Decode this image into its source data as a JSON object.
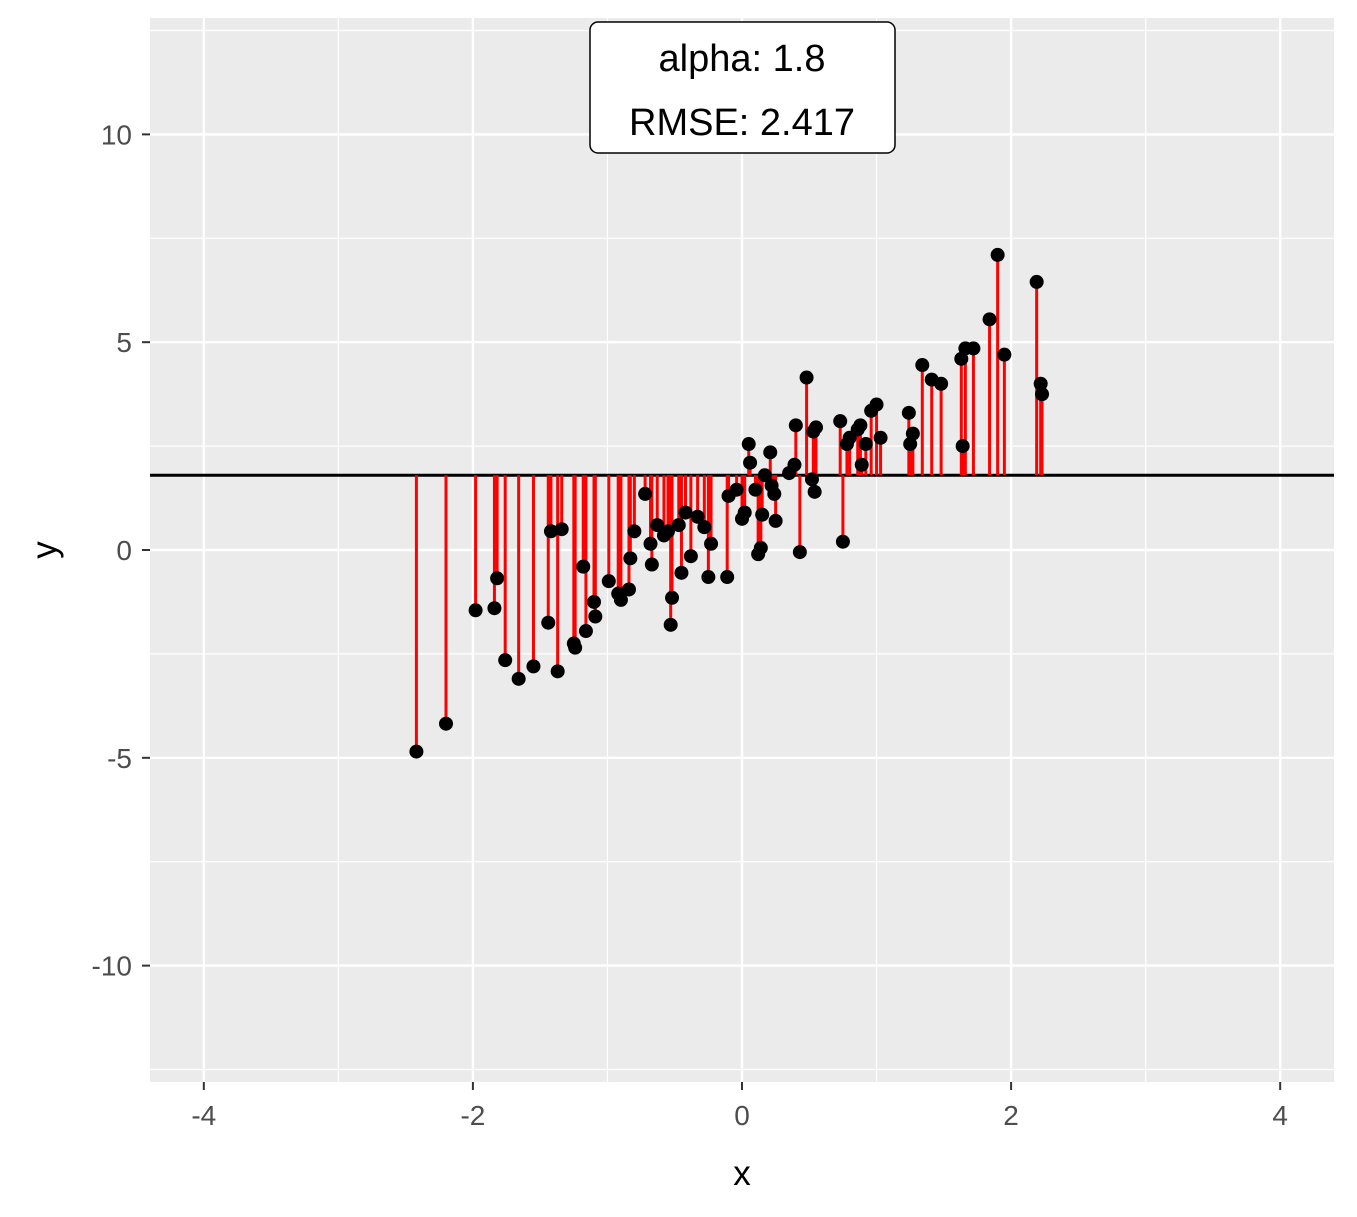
{
  "chart_data": {
    "type": "scatter",
    "title": "",
    "xlabel": "x",
    "ylabel": "y",
    "xlim": [
      -4.4,
      4.4
    ],
    "ylim": [
      -12.8,
      12.8
    ],
    "x_ticks": [
      -4,
      -2,
      0,
      2,
      4
    ],
    "x_tick_labels": [
      "-4",
      "-2",
      "0",
      "2",
      "4"
    ],
    "y_ticks": [
      -10,
      -5,
      0,
      5,
      10
    ],
    "y_tick_labels": [
      "-10",
      "-5",
      "0",
      "5",
      "10"
    ],
    "grid": true,
    "legend": "none",
    "colors": {
      "points": "#000000",
      "residuals": "#ff0000",
      "reference_line": "#000000",
      "panel": "#ebebeb",
      "grid": "#ffffff"
    },
    "reference_line": {
      "y": 1.8
    },
    "annotation": {
      "lines": [
        "alpha: 1.8",
        "RMSE: 2.417"
      ],
      "position": "top-center"
    },
    "points": [
      {
        "x": -2.42,
        "y": -4.85
      },
      {
        "x": -2.2,
        "y": -4.18
      },
      {
        "x": -1.98,
        "y": -1.45
      },
      {
        "x": -1.84,
        "y": -1.4
      },
      {
        "x": -1.82,
        "y": -0.68
      },
      {
        "x": -1.76,
        "y": -2.65
      },
      {
        "x": -1.66,
        "y": -3.1
      },
      {
        "x": -1.55,
        "y": -2.8
      },
      {
        "x": -1.44,
        "y": -1.75
      },
      {
        "x": -1.42,
        "y": 0.45
      },
      {
        "x": -1.37,
        "y": -2.92
      },
      {
        "x": -1.34,
        "y": 0.5
      },
      {
        "x": -1.25,
        "y": -2.25
      },
      {
        "x": -1.24,
        "y": -2.35
      },
      {
        "x": -1.18,
        "y": -0.4
      },
      {
        "x": -1.16,
        "y": -1.95
      },
      {
        "x": -1.1,
        "y": -1.25
      },
      {
        "x": -1.09,
        "y": -1.6
      },
      {
        "x": -0.99,
        "y": -0.75
      },
      {
        "x": -0.92,
        "y": -1.05
      },
      {
        "x": -0.9,
        "y": -1.2
      },
      {
        "x": -0.84,
        "y": -0.95
      },
      {
        "x": -0.83,
        "y": -0.2
      },
      {
        "x": -0.8,
        "y": 0.45
      },
      {
        "x": -0.72,
        "y": 1.35
      },
      {
        "x": -0.68,
        "y": 0.15
      },
      {
        "x": -0.67,
        "y": -0.35
      },
      {
        "x": -0.63,
        "y": 0.6
      },
      {
        "x": -0.58,
        "y": 0.35
      },
      {
        "x": -0.55,
        "y": 0.45
      },
      {
        "x": -0.53,
        "y": -1.8
      },
      {
        "x": -0.52,
        "y": -1.15
      },
      {
        "x": -0.47,
        "y": 0.6
      },
      {
        "x": -0.45,
        "y": -0.55
      },
      {
        "x": -0.42,
        "y": 0.9
      },
      {
        "x": -0.38,
        "y": -0.15
      },
      {
        "x": -0.33,
        "y": 0.8
      },
      {
        "x": -0.28,
        "y": 0.55
      },
      {
        "x": -0.25,
        "y": -0.65
      },
      {
        "x": -0.23,
        "y": 0.15
      },
      {
        "x": -0.11,
        "y": -0.65
      },
      {
        "x": -0.1,
        "y": 1.3
      },
      {
        "x": -0.04,
        "y": 1.45
      },
      {
        "x": 0.0,
        "y": 0.75
      },
      {
        "x": 0.02,
        "y": 0.9
      },
      {
        "x": 0.05,
        "y": 2.55
      },
      {
        "x": 0.06,
        "y": 2.1
      },
      {
        "x": 0.1,
        "y": 1.45
      },
      {
        "x": 0.12,
        "y": -0.1
      },
      {
        "x": 0.14,
        "y": 0.05
      },
      {
        "x": 0.15,
        "y": 0.85
      },
      {
        "x": 0.17,
        "y": 1.8
      },
      {
        "x": 0.21,
        "y": 2.35
      },
      {
        "x": 0.22,
        "y": 1.55
      },
      {
        "x": 0.24,
        "y": 1.35
      },
      {
        "x": 0.25,
        "y": 0.7
      },
      {
        "x": 0.35,
        "y": 1.85
      },
      {
        "x": 0.39,
        "y": 2.05
      },
      {
        "x": 0.4,
        "y": 3.0
      },
      {
        "x": 0.43,
        "y": -0.05
      },
      {
        "x": 0.48,
        "y": 4.15
      },
      {
        "x": 0.52,
        "y": 1.7
      },
      {
        "x": 0.53,
        "y": 2.85
      },
      {
        "x": 0.54,
        "y": 1.4
      },
      {
        "x": 0.55,
        "y": 2.95
      },
      {
        "x": 0.73,
        "y": 3.1
      },
      {
        "x": 0.75,
        "y": 0.2
      },
      {
        "x": 0.78,
        "y": 2.55
      },
      {
        "x": 0.8,
        "y": 2.7
      },
      {
        "x": 0.86,
        "y": 2.9
      },
      {
        "x": 0.88,
        "y": 3.0
      },
      {
        "x": 0.89,
        "y": 2.05
      },
      {
        "x": 0.92,
        "y": 2.55
      },
      {
        "x": 0.96,
        "y": 3.35
      },
      {
        "x": 1.0,
        "y": 3.5
      },
      {
        "x": 1.03,
        "y": 2.7
      },
      {
        "x": 1.24,
        "y": 3.3
      },
      {
        "x": 1.25,
        "y": 2.55
      },
      {
        "x": 1.27,
        "y": 2.8
      },
      {
        "x": 1.34,
        "y": 4.45
      },
      {
        "x": 1.41,
        "y": 4.1
      },
      {
        "x": 1.48,
        "y": 4.0
      },
      {
        "x": 1.63,
        "y": 4.6
      },
      {
        "x": 1.64,
        "y": 2.5
      },
      {
        "x": 1.66,
        "y": 4.85
      },
      {
        "x": 1.72,
        "y": 4.85
      },
      {
        "x": 1.84,
        "y": 5.55
      },
      {
        "x": 1.9,
        "y": 7.1
      },
      {
        "x": 1.95,
        "y": 4.7
      },
      {
        "x": 2.19,
        "y": 6.45
      },
      {
        "x": 2.22,
        "y": 4.0
      },
      {
        "x": 2.23,
        "y": 3.75
      }
    ]
  }
}
